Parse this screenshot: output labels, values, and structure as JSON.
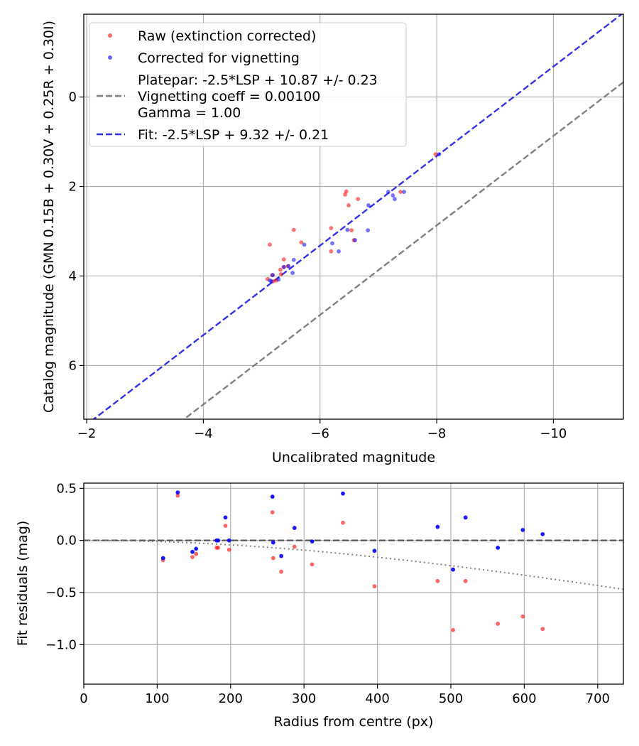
{
  "chart_data": [
    {
      "type": "scatter",
      "id": "top",
      "xlabel": "Uncalibrated magnitude",
      "ylabel": "Catalog magnitude (GMN 0.15B + 0.30V + 0.25R + 0.30I)",
      "xlim": [
        -1.95,
        -11.2
      ],
      "ylim": [
        7.2,
        -1.85
      ],
      "xticks": [
        -2,
        -4,
        -6,
        -8,
        -10
      ],
      "xtick_labels": [
        "−2",
        "−4",
        "−6",
        "−8",
        "−10"
      ],
      "yticks": [
        0,
        2,
        4,
        6
      ],
      "ytick_labels": [
        "0",
        "2",
        "4",
        "6"
      ],
      "grid": true,
      "legend": {
        "placement": "upper-left",
        "entries": [
          {
            "kind": "marker",
            "color": "#ff0000",
            "label": "Raw (extinction corrected)"
          },
          {
            "kind": "marker",
            "color": "#0000ff",
            "label": "Corrected for vignetting"
          },
          {
            "kind": "line",
            "color": "#808080",
            "lines": [
              "Platepar: -2.5*LSP + 10.87 +/- 0.23",
              "Vignetting coeff = 0.00100",
              "Gamma = 1.00"
            ]
          },
          {
            "kind": "line",
            "color": "#3333ee",
            "lines": [
              "Fit: -2.5*LSP + 9.32 +/- 0.21"
            ]
          }
        ]
      },
      "lines": [
        {
          "name": "Platepar",
          "color": "#808080",
          "slope": 1,
          "intercept": 10.87
        },
        {
          "name": "Fit",
          "color": "#3333ee",
          "slope": 1,
          "intercept": 9.32
        }
      ],
      "series": [
        {
          "name": "Raw (extinction corrected)",
          "color": "#ff0000",
          "points": [
            [
              -7.98,
              1.28
            ],
            [
              -7.38,
              2.12
            ],
            [
              -6.65,
              2.28
            ],
            [
              -6.45,
              2.11
            ],
            [
              -6.43,
              2.18
            ],
            [
              -6.49,
              2.42
            ],
            [
              -6.54,
              2.98
            ],
            [
              -6.58,
              3.2
            ],
            [
              -6.19,
              2.93
            ],
            [
              -6.19,
              3.45
            ],
            [
              -5.55,
              2.97
            ],
            [
              -5.68,
              3.25
            ],
            [
              -5.14,
              3.3
            ],
            [
              -5.38,
              3.63
            ],
            [
              -5.38,
              3.8
            ],
            [
              -5.32,
              3.86
            ],
            [
              -5.45,
              3.78
            ],
            [
              -5.33,
              3.96
            ],
            [
              -5.18,
              3.98
            ],
            [
              -5.1,
              4.07
            ],
            [
              -5.25,
              4.1
            ],
            [
              -5.2,
              4.12
            ]
          ]
        },
        {
          "name": "Corrected for vignetting",
          "color": "#0000ff",
          "points": [
            [
              -8.04,
              1.28
            ],
            [
              -7.17,
              2.12
            ],
            [
              -7.44,
              2.12
            ],
            [
              -7.25,
              2.2
            ],
            [
              -7.28,
              2.28
            ],
            [
              -6.83,
              2.42
            ],
            [
              -6.82,
              2.98
            ],
            [
              -6.47,
              2.97
            ],
            [
              -6.6,
              3.2
            ],
            [
              -6.21,
              3.27
            ],
            [
              -6.32,
              3.45
            ],
            [
              -5.73,
              3.3
            ],
            [
              -5.55,
              3.64
            ],
            [
              -5.46,
              3.78
            ],
            [
              -5.53,
              3.93
            ],
            [
              -5.38,
              3.8
            ],
            [
              -5.19,
              3.98
            ],
            [
              -5.29,
              4.08
            ],
            [
              -5.17,
              4.12
            ],
            [
              -5.14,
              4.1
            ]
          ]
        }
      ]
    },
    {
      "type": "scatter",
      "id": "bottom",
      "xlabel": "Radius from centre (px)",
      "ylabel": "Fit residuals (mag)",
      "xlim": [
        0,
        735
      ],
      "ylim": [
        -1.38,
        0.55
      ],
      "xticks": [
        0,
        100,
        200,
        300,
        400,
        500,
        600,
        700
      ],
      "xtick_labels": [
        "0",
        "100",
        "200",
        "300",
        "400",
        "500",
        "600",
        "700"
      ],
      "yticks": [
        0.5,
        0,
        -0.5,
        -1
      ],
      "ytick_labels": [
        "0.5",
        "0.0",
        "−0.5",
        "−1.0"
      ],
      "grid": true,
      "lines": [
        {
          "name": "zero",
          "color": "#555555",
          "style": "dashed",
          "y": 0
        },
        {
          "name": "vignetting model",
          "color": "#808080",
          "style": "dotted",
          "coeff": 0.001
        }
      ],
      "series": [
        {
          "name": "Raw",
          "color": "#ff0000",
          "points": [
            [
              108,
              -0.19
            ],
            [
              128,
              0.43
            ],
            [
              148,
              -0.16
            ],
            [
              153,
              -0.13
            ],
            [
              181,
              -0.07
            ],
            [
              183,
              -0.07
            ],
            [
              193,
              0.14
            ],
            [
              198,
              -0.09
            ],
            [
              257,
              0.27
            ],
            [
              258,
              -0.17
            ],
            [
              269,
              -0.3
            ],
            [
              287,
              -0.06
            ],
            [
              311,
              -0.23
            ],
            [
              353,
              0.17
            ],
            [
              396,
              -0.44
            ],
            [
              482,
              -0.39
            ],
            [
              503,
              -0.86
            ],
            [
              520,
              -0.39
            ],
            [
              564,
              -0.8
            ],
            [
              598,
              -0.73
            ],
            [
              625,
              -0.85
            ]
          ]
        },
        {
          "name": "Corrected",
          "color": "#0000ff",
          "points": [
            [
              108,
              -0.17
            ],
            [
              128,
              0.46
            ],
            [
              148,
              -0.11
            ],
            [
              153,
              -0.08
            ],
            [
              181,
              0.0
            ],
            [
              183,
              0.0
            ],
            [
              193,
              0.22
            ],
            [
              198,
              0.0
            ],
            [
              257,
              0.42
            ],
            [
              258,
              -0.02
            ],
            [
              269,
              -0.15
            ],
            [
              287,
              0.12
            ],
            [
              311,
              -0.01
            ],
            [
              353,
              0.45
            ],
            [
              396,
              -0.1
            ],
            [
              482,
              0.13
            ],
            [
              503,
              -0.28
            ],
            [
              520,
              0.22
            ],
            [
              564,
              -0.07
            ],
            [
              598,
              0.1
            ],
            [
              625,
              0.06
            ]
          ]
        }
      ]
    }
  ]
}
